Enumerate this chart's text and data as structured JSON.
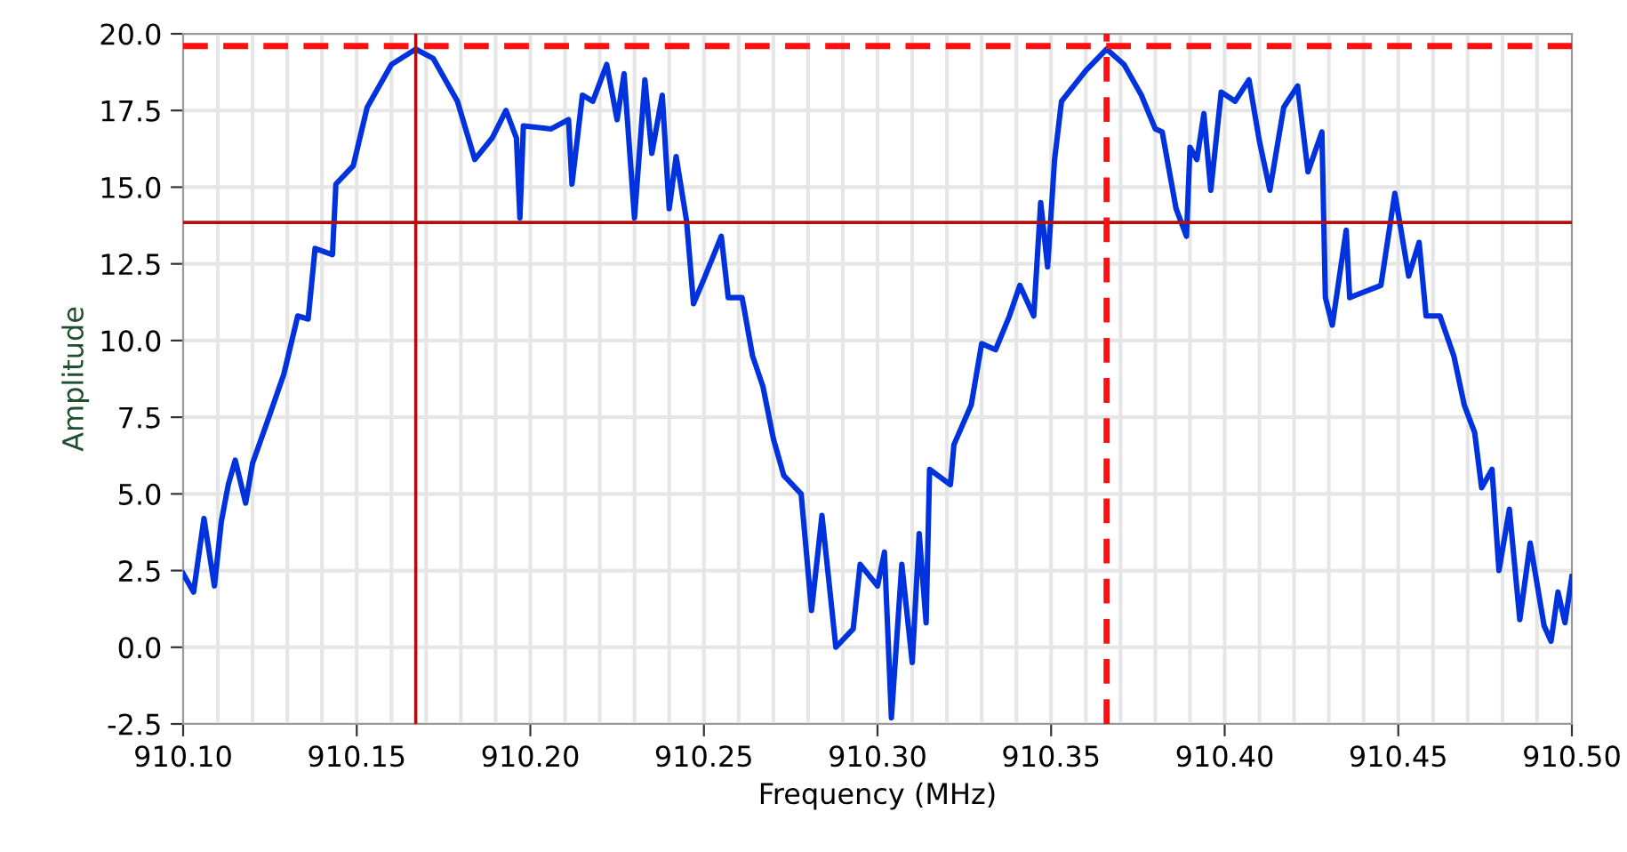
{
  "chart_data": {
    "type": "line",
    "xlabel": "Frequency (MHz)",
    "ylabel": "Amplitude",
    "xlim": [
      910.1,
      910.5
    ],
    "ylim": [
      -2.5,
      20.0
    ],
    "xticks": [
      {
        "value": 910.1,
        "label": "910.10"
      },
      {
        "value": 910.15,
        "label": "910.15"
      },
      {
        "value": 910.2,
        "label": "910.20"
      },
      {
        "value": 910.25,
        "label": "910.25"
      },
      {
        "value": 910.3,
        "label": "910.30"
      },
      {
        "value": 910.35,
        "label": "910.35"
      },
      {
        "value": 910.4,
        "label": "910.40"
      },
      {
        "value": 910.45,
        "label": "910.45"
      },
      {
        "value": 910.5,
        "label": "910.50"
      }
    ],
    "yticks": [
      {
        "value": -2.5,
        "label": "-2.5"
      },
      {
        "value": 0,
        "label": "0.0"
      },
      {
        "value": 2.5,
        "label": "2.5"
      },
      {
        "value": 5,
        "label": "5.0"
      },
      {
        "value": 7.5,
        "label": "7.5"
      },
      {
        "value": 10,
        "label": "10.0"
      },
      {
        "value": 12.5,
        "label": "12.5"
      },
      {
        "value": 15,
        "label": "15.0"
      },
      {
        "value": 17.5,
        "label": "17.5"
      },
      {
        "value": 20,
        "label": "20.0"
      }
    ],
    "grid": true,
    "line_style": "solid",
    "series": [
      {
        "color": "#0033dd",
        "x": [
          910.1,
          910.103,
          910.106,
          910.109,
          910.111,
          910.113,
          910.115,
          910.118,
          910.12,
          910.125,
          910.129,
          910.133,
          910.136,
          910.138,
          910.143,
          910.144,
          910.149,
          910.153,
          910.16,
          910.167,
          910.172,
          910.179,
          910.184,
          910.189,
          910.193,
          910.196,
          910.197,
          910.198,
          910.206,
          910.211,
          910.212,
          910.215,
          910.218,
          910.222,
          910.225,
          910.227,
          910.23,
          910.233,
          910.235,
          910.238,
          910.24,
          910.242,
          910.245,
          910.247,
          910.25,
          910.255,
          910.257,
          910.261,
          910.264,
          910.267,
          910.27,
          910.273,
          910.278,
          910.281,
          910.284,
          910.288,
          910.293,
          910.295,
          910.3,
          910.302,
          910.304,
          910.307,
          910.31,
          910.312,
          910.314,
          910.315,
          910.321,
          910.322,
          910.327,
          910.33,
          910.334,
          910.338,
          910.341,
          910.345,
          910.347,
          910.349,
          910.351,
          910.353,
          910.36,
          910.366,
          910.371,
          910.376,
          910.38,
          910.382,
          910.386,
          910.389,
          910.39,
          910.392,
          910.394,
          910.396,
          910.399,
          910.403,
          910.407,
          910.41,
          910.413,
          910.417,
          910.421,
          910.424,
          910.428,
          910.429,
          910.431,
          910.435,
          910.436,
          910.445,
          910.449,
          910.453,
          910.456,
          910.458,
          910.462,
          910.466,
          910.469,
          910.472,
          910.474,
          910.477,
          910.479,
          910.482,
          910.485,
          910.488,
          910.492,
          910.494,
          910.496,
          910.498,
          910.5
        ],
        "values": [
          2.4,
          1.8,
          4.2,
          2.0,
          4.1,
          5.3,
          6.1,
          4.7,
          6.0,
          7.6,
          8.9,
          10.8,
          10.7,
          13.0,
          12.8,
          15.1,
          15.7,
          17.6,
          19.0,
          19.5,
          19.2,
          17.8,
          15.9,
          16.6,
          17.5,
          16.6,
          14.0,
          17.0,
          16.9,
          17.2,
          15.1,
          18.0,
          17.8,
          19.0,
          17.2,
          18.7,
          14.0,
          18.5,
          16.1,
          18.0,
          14.3,
          16.0,
          13.9,
          11.2,
          12.0,
          13.4,
          11.4,
          11.4,
          9.5,
          8.5,
          6.8,
          5.6,
          5.0,
          1.2,
          4.3,
          0.0,
          0.6,
          2.7,
          2.0,
          3.1,
          -2.3,
          2.7,
          -0.5,
          3.7,
          0.8,
          5.8,
          5.3,
          6.6,
          7.9,
          9.9,
          9.7,
          10.8,
          11.8,
          10.8,
          14.5,
          12.4,
          15.9,
          17.8,
          18.8,
          19.5,
          19.0,
          18.0,
          16.9,
          16.8,
          14.3,
          13.4,
          16.3,
          15.9,
          17.4,
          14.9,
          18.1,
          17.8,
          18.5,
          16.5,
          14.9,
          17.6,
          18.3,
          15.5,
          16.8,
          11.4,
          10.5,
          13.6,
          11.4,
          11.8,
          14.8,
          12.1,
          13.2,
          10.8,
          10.8,
          9.5,
          7.9,
          7.0,
          5.2,
          5.8,
          2.5,
          4.5,
          0.9,
          3.4,
          0.7,
          0.2,
          1.8,
          0.8,
          2.3
        ]
      }
    ],
    "ref_lines": [
      {
        "axis": "x",
        "value": 910.167,
        "color": "#b01010",
        "line_style": "solid"
      },
      {
        "axis": "y",
        "value": 13.85,
        "color": "#b01010",
        "line_style": "solid"
      },
      {
        "axis": "x",
        "value": 910.366,
        "color": "#ff1010",
        "line_style": "dashed"
      },
      {
        "axis": "y",
        "value": 19.6,
        "color": "#ff1010",
        "line_style": "dashed"
      }
    ]
  }
}
